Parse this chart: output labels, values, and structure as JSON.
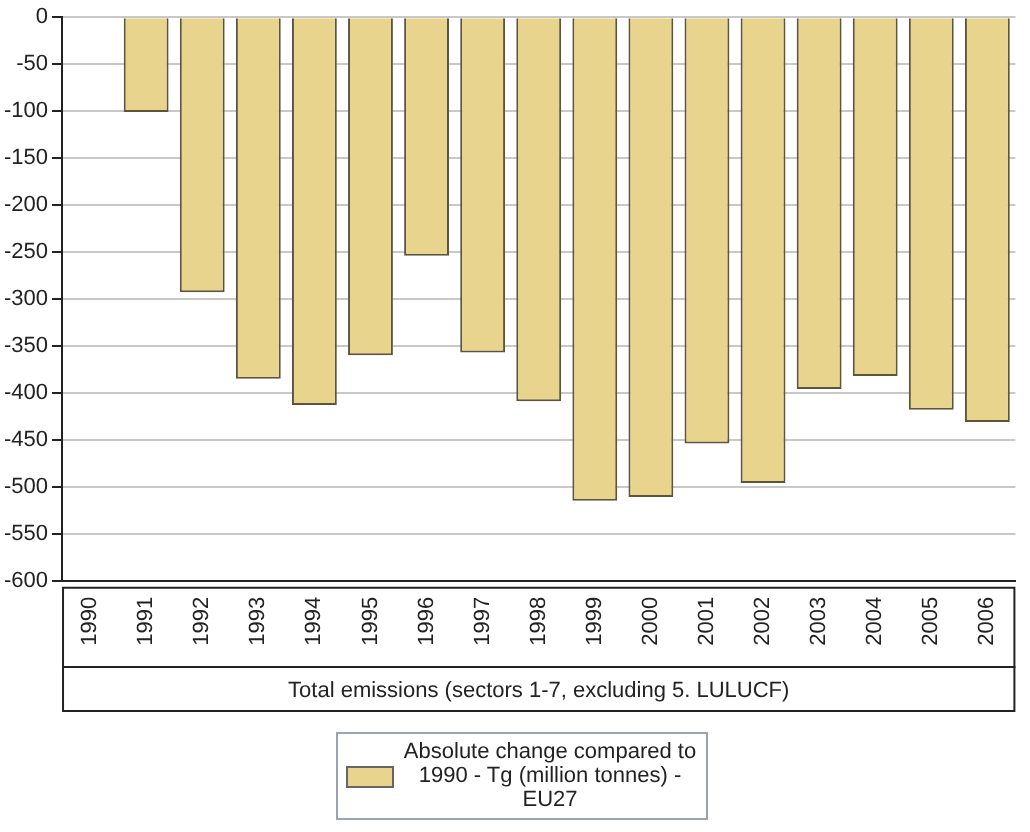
{
  "chart_data": {
    "type": "bar",
    "xlabel": "Total emissions (sectors 1-7, excluding 5. LULUCF)",
    "categories": [
      "1990",
      "1991",
      "1992",
      "1993",
      "1994",
      "1995",
      "1996",
      "1997",
      "1998",
      "1999",
      "2000",
      "2001",
      "2002",
      "2003",
      "2004",
      "2005",
      "2006"
    ],
    "series": [
      {
        "name": "Absolute change compared to 1990 - Tg (million tonnes) - EU27",
        "color": "#e9d48e",
        "values": [
          0,
          -101,
          -293,
          -385,
          -413,
          -360,
          -254,
          -357,
          -409,
          -515,
          -511,
          -454,
          -496,
          -396,
          -382,
          -418,
          -431
        ]
      }
    ],
    "ylim": [
      -600,
      0
    ],
    "yticks": [
      -600,
      -550,
      -500,
      -450,
      -400,
      -350,
      -300,
      -250,
      -200,
      -150,
      -100,
      -50,
      0
    ],
    "grid": "y",
    "legend": "bottom"
  }
}
